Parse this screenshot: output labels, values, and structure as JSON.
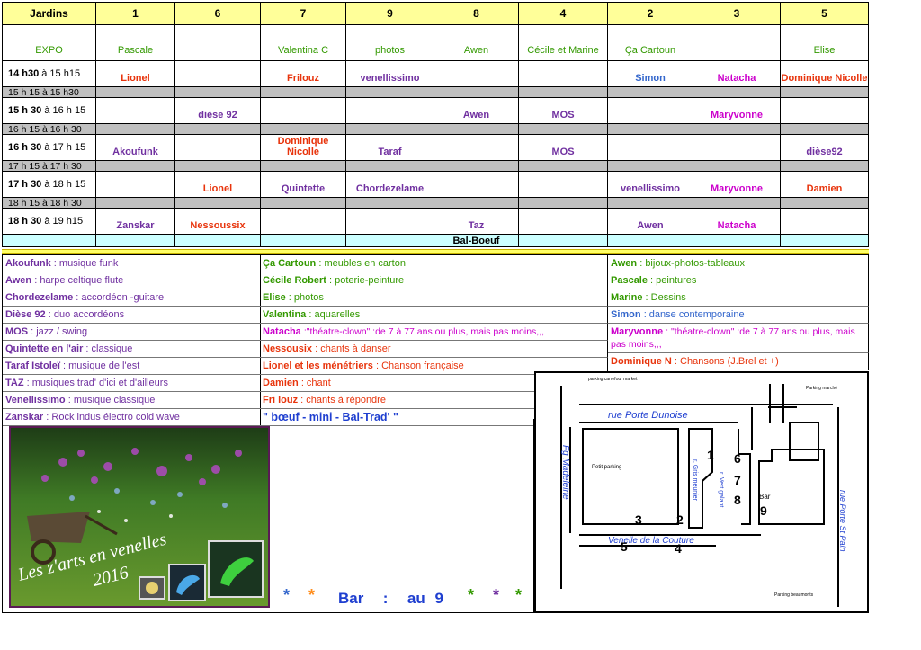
{
  "schedule": {
    "header": [
      "Jardins",
      "1",
      "6",
      "7",
      "9",
      "8",
      "4",
      "2",
      "3",
      "5"
    ],
    "rows": [
      {
        "label": "EXPO",
        "label_color": "#339900",
        "cells": [
          "Pascale",
          null,
          "Valentina C",
          "photos",
          "Awen",
          "Cécile et Marine",
          "Ça Cartoun",
          null,
          "Elise"
        ],
        "colors": [
          "#339900",
          null,
          "#339900",
          "#339900",
          "#339900",
          "#339900",
          "#339900",
          null,
          "#339900"
        ]
      },
      {
        "time": "14 h30",
        "until": "à 15 h15",
        "cells": [
          "Lionel",
          null,
          "Frilouz",
          "venellissimo",
          null,
          null,
          "Simon",
          "Natacha",
          "Dominique Nicolle"
        ],
        "colors": [
          "#e8340c",
          null,
          "#e8340c",
          "#7030a0",
          null,
          null,
          "#3366cc",
          "#cc00cc",
          "#e8340c"
        ]
      },
      {
        "gap": "15 h 15 à 15 h30"
      },
      {
        "time": "15 h 30",
        "until": "à 16 h 15",
        "cells": [
          null,
          "dièse 92",
          null,
          null,
          "Awen",
          "MOS",
          null,
          "Maryvonne",
          null
        ],
        "colors": [
          null,
          "#7030a0",
          null,
          null,
          "#7030a0",
          "#7030a0",
          null,
          "#cc00cc",
          null
        ]
      },
      {
        "gap": "16 h 15 à 16 h 30"
      },
      {
        "time": "16 h 30",
        "until": "à 17 h 15",
        "cells": [
          "Akoufunk",
          null,
          "Dominique Nicolle",
          "Taraf",
          null,
          "MOS",
          null,
          null,
          "dièse92"
        ],
        "colors": [
          "#7030a0",
          null,
          "#e8340c",
          "#7030a0",
          null,
          "#7030a0",
          null,
          null,
          "#7030a0"
        ]
      },
      {
        "gap": "17 h 15 à 17 h 30"
      },
      {
        "time": "17 h 30",
        "until": "à 18 h 15",
        "cells": [
          null,
          "Lionel",
          "Quintette",
          "Chordezelame",
          null,
          null,
          "venellissimo",
          "Maryvonne",
          "Damien"
        ],
        "colors": [
          null,
          "#e8340c",
          "#7030a0",
          "#7030a0",
          null,
          null,
          "#7030a0",
          "#cc00cc",
          "#e8340c"
        ]
      },
      {
        "gap": "18 h 15 à 18 h 30"
      },
      {
        "time": "18 h 30",
        "until": "à 19 h15",
        "cells": [
          "Zanskar",
          "Nessoussix",
          null,
          null,
          "Taz",
          null,
          "Awen",
          "Natacha",
          null
        ],
        "colors": [
          "#7030a0",
          "#e8340c",
          null,
          null,
          "#7030a0",
          null,
          "#7030a0",
          "#cc00cc",
          null
        ]
      },
      {
        "cells": [
          null,
          null,
          null,
          null,
          "Bal-Boeuf",
          null,
          null,
          null,
          null
        ],
        "colors": [
          null,
          null,
          null,
          null,
          "#000000",
          null,
          null,
          null,
          null
        ]
      }
    ]
  },
  "legend": [
    [
      {
        "name": "Akoufunk",
        "desc": ": musique funk",
        "color": "#7030a0"
      },
      {
        "name": "Awen",
        "desc": ": harpe celtique flute",
        "color": "#7030a0"
      },
      {
        "name": "Chordezelame",
        "desc": ": accordéon -guitare",
        "color": "#7030a0"
      },
      {
        "name": "Dièse 92",
        "desc": ": duo accordéons",
        "color": "#7030a0"
      },
      {
        "name": "MOS",
        "desc": ": jazz / swing",
        "color": "#7030a0"
      },
      {
        "name": "Quintette en l'air",
        "desc": ": classique",
        "color": "#7030a0"
      },
      {
        "name": "Taraf Istoleï",
        "desc": ": musique de l'est",
        "color": "#7030a0"
      },
      {
        "name": "TAZ",
        "desc": ": musiques trad' d'ici et d'ailleurs",
        "color": "#7030a0"
      },
      {
        "name": "Venellissimo",
        "desc": ": musique classique",
        "color": "#7030a0"
      },
      {
        "name": "Zanskar",
        "desc": ": Rock indus électro cold wave",
        "color": "#7030a0"
      }
    ],
    [
      {
        "name": "Ça Cartoun",
        "desc": ": meubles en carton",
        "color": "#339900"
      },
      {
        "name": "Cécile Robert",
        "desc": ": poterie-peinture",
        "color": "#339900"
      },
      {
        "name": "Elise",
        "desc": ": photos",
        "color": "#339900"
      },
      {
        "name": "Valentina",
        "desc": ": aquarelles",
        "color": "#339900"
      },
      {
        "name": "Natacha",
        "desc": ":\"théatre-clown\" :de 7 à 77 ans ou plus,  mais pas moins,,,",
        "color": "#cc00cc"
      },
      {
        "name": "Nessousix",
        "desc": ": chants à danser",
        "color": "#e8340c"
      },
      {
        "name": "Lionel et les ménétriers",
        "desc": ": Chanson française",
        "color": "#e8340c"
      },
      {
        "name": "Damien",
        "desc": ": chant",
        "color": "#e8340c"
      },
      {
        "name": "Fri louz",
        "desc": ": chants à répondre",
        "color": "#e8340c"
      },
      {
        "name": "\" bœuf - mini - Bal-Trad'  \"",
        "color": "#1f3fd0"
      }
    ],
    [
      {
        "name": "Awen",
        "desc": ": bijoux-photos-tableaux",
        "color": "#339900"
      },
      {
        "name": "Pascale",
        "desc": ": peintures",
        "color": "#339900"
      },
      {
        "name": "Marine",
        "desc": ": Dessins",
        "color": "#339900"
      },
      {
        "name": "Simon",
        "desc": ": danse contemporaine",
        "color": "#3366cc"
      },
      {
        "name": "Maryvonne",
        "desc": ": \"théatre-clown\" :de 7 à 77 ans ou plus, mais pas moins,,,",
        "color": "#cc00cc"
      },
      {
        "name": "Dominique N",
        "desc": ":  Chansons (J.Brel et +)",
        "color": "#e8340c"
      }
    ]
  ],
  "image": {
    "caption": "Les z'arts en venelles",
    "year": "2016"
  },
  "footer": {
    "stars_left": [
      "*",
      "*"
    ],
    "stars_left_colors": [
      "#3366cc",
      "#ff8c1a"
    ],
    "text": "Bar  :  au 9",
    "stars_right": [
      "*",
      "*",
      "*"
    ],
    "stars_right_colors": [
      "#339900",
      "#7030a0",
      "#339900"
    ]
  },
  "map": {
    "labels": [
      "parking carrefour market",
      "Parking marché",
      "rue Porte Dunoise",
      "Petit parking",
      "Fg Madeleine",
      "r. Gris meunier",
      "r. Vert galant",
      "Bar",
      "rue Porte St Pain",
      "Venelle de la Couture",
      "Parking beaumonts"
    ],
    "numbers": [
      "1",
      "6",
      "7",
      "8",
      "9",
      "3",
      "2",
      "5",
      "4"
    ]
  }
}
